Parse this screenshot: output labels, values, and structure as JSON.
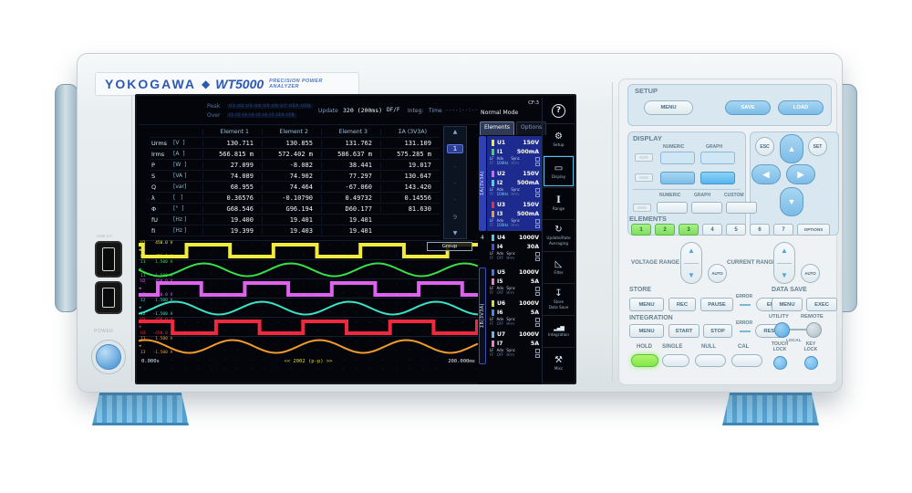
{
  "brand": {
    "logo": "YOKOGAWA",
    "diamond": "◆",
    "model": "WT5000",
    "subtitle": "PRECISION POWER ANALYZER"
  },
  "left_panel": {
    "usb_label": "USB 2.0",
    "power_label": "POWER"
  },
  "screen": {
    "status": {
      "peak_label": "Peak",
      "over_label": "Over",
      "peak_values": "U1 U2 U3 U4 U5 U6 U7 UΣA UΣB",
      "over_values": "I1 I2 I3 I4 I5 I6 I7 IΣA IΣB",
      "update_label": "Update",
      "update_value": "320 (200ms)",
      "update_suffix": "DF/F",
      "integ_label": "Integ:",
      "time_label": "Time",
      "time_value": "----:--:--"
    },
    "mode": "Normal Mode",
    "cf_badge": "CF:3",
    "tabs": [
      {
        "label": "Elements"
      },
      {
        "label": "Options"
      }
    ],
    "table": {
      "headers": [
        "Element 1",
        "Element 2",
        "Element 3",
        "ΣA (3V3A)"
      ],
      "rows": [
        {
          "name": "Urms",
          "unit": "[V  ]",
          "values": [
            "130.711",
            "130.855",
            "131.762",
            "131.109"
          ]
        },
        {
          "name": "Irms",
          "unit": "[A  ]",
          "values": [
            "566.815 m",
            "572.402 m",
            "586.637 m",
            "575.285 m"
          ]
        },
        {
          "name": "P",
          "unit": "[W  ]",
          "values": [
            "27.099",
            "-8.082",
            "38.441",
            "19.017"
          ]
        },
        {
          "name": "S",
          "unit": "[VA ]",
          "values": [
            "74.089",
            "74.902",
            "77.297",
            "130.647"
          ]
        },
        {
          "name": "Q",
          "unit": "[var]",
          "values": [
            "68.955",
            "74.464",
            "-67.060",
            "143.420"
          ]
        },
        {
          "name": "λ",
          "unit": "[   ]",
          "values": [
            "0.36576",
            "-0.10790",
            "0.49732",
            "0.14556"
          ]
        },
        {
          "name": "Φ",
          "unit": "[°  ]",
          "values": [
            "G68.546",
            "G96.194",
            "D60.177",
            "81.630"
          ]
        },
        {
          "name": "fU",
          "unit": "[Hz ]",
          "values": [
            "19.400",
            "19.401",
            "19.401",
            ""
          ]
        },
        {
          "name": "fI",
          "unit": "[Hz ]",
          "values": [
            "19.399",
            "19.403",
            "19.401",
            ""
          ]
        }
      ]
    },
    "pager": {
      "up": "▲",
      "pages": [
        "1",
        "·",
        "·",
        "·",
        "9"
      ],
      "current": "1",
      "down": "▼"
    },
    "waveforms": {
      "group_label": "Group",
      "time_start": "0.000s",
      "time_center": "<< 2002 (p-p) >>",
      "time_end": "200.000ms",
      "traces": [
        {
          "id": "U1",
          "type": "square",
          "color": "#f2ea3c",
          "label_top": "U1    450.0 V",
          "label_bottom": "U1   -450.0 V",
          "phase": 0.45
        },
        {
          "id": "I1",
          "type": "sine",
          "color": "#38df4b",
          "label_top": "I1    1.500 A",
          "label_bottom": "I1   -1.500 A",
          "phase": 0.5
        },
        {
          "id": "U2",
          "type": "square",
          "color": "#de62ee",
          "label_top": "U2    450.0 V",
          "label_bottom": "U2   -450.0 V",
          "phase": 0.78
        },
        {
          "id": "I2",
          "type": "sine",
          "color": "#3be2c4",
          "label_top": "I2    1.500 A",
          "label_bottom": "I2   -1.500 A",
          "phase": 0.83
        },
        {
          "id": "U3",
          "type": "square",
          "color": "#f2293e",
          "label_top": "U3    450.0 V",
          "label_bottom": "U3   -450.0 V",
          "phase": 0.11
        },
        {
          "id": "I3",
          "type": "sine",
          "color": "#f29b2c",
          "label_top": "I3    1.500 A",
          "label_bottom": "I3   -1.500 A",
          "phase": 0.17
        }
      ]
    },
    "elements_panel": {
      "group_a_label": "ΣA(3V3A)",
      "group_b_label": "ΣB(3V3A)",
      "element4_label": "4",
      "entries": [
        {
          "num": 1,
          "group": "A",
          "u": "U1",
          "u_range": "150V",
          "u_color": "#f2ea3c",
          "i": "I1",
          "i_range": "500mA",
          "i_color": "#38df4b",
          "lf": "LF",
          "ff": "FF",
          "adv": "Adv",
          "freq": "100Hz",
          "sync": "Sync",
          "hrm": "Hrm"
        },
        {
          "num": 2,
          "group": "A",
          "u": "U2",
          "u_range": "150V",
          "u_color": "#de62ee",
          "i": "I2",
          "i_range": "500mA",
          "i_color": "#3be2c4",
          "lf": "LF",
          "ff": "FF",
          "adv": "Adv",
          "freq": "100Hz",
          "sync": "Sync",
          "hrm": "Hrm"
        },
        {
          "num": 3,
          "group": "A",
          "u": "U3",
          "u_range": "150V",
          "u_color": "#f2293e",
          "i": "I3",
          "i_range": "500mA",
          "i_color": "#f29b2c",
          "lf": "LF",
          "ff": "FF",
          "adv": "Adv",
          "freq": "100Hz",
          "sync": "Sync",
          "hrm": "Hrm"
        },
        {
          "num": 4,
          "group": "solo",
          "u": "U4",
          "u_range": "1000V",
          "u_color": "#54c8f0",
          "i": "I4",
          "i_range": "30A",
          "i_color": "#3c55d8",
          "lf": "LF",
          "ff": "FF",
          "adv": "Adv",
          "freq": "OFF",
          "sync": "Sync",
          "hrm": "Hrm"
        },
        {
          "num": 5,
          "group": "B",
          "u": "U5",
          "u_range": "1000V",
          "u_color": "#3c78f0",
          "i": "I5",
          "i_range": "5A",
          "i_color": "#f07cc8",
          "lf": "LF",
          "ff": "FF",
          "adv": "Adv",
          "freq": "OFF",
          "sync": "Sync",
          "hrm": "Hrm"
        },
        {
          "num": 6,
          "group": "B",
          "u": "U6",
          "u_range": "1000V",
          "u_color": "#c8e62c",
          "i": "I6",
          "i_range": "5A",
          "i_color": "#3c8cf0",
          "lf": "LF",
          "ff": "FF",
          "adv": "Adv",
          "freq": "OFF",
          "sync": "Sync",
          "hrm": "Hrm"
        },
        {
          "num": 7,
          "group": "B",
          "u": "U7",
          "u_range": "1000V",
          "u_color": "#6cb6f0",
          "i": "I7",
          "i_range": "5A",
          "i_color": "#f07cc8",
          "lf": "LF",
          "ff": "FF",
          "adv": "Adv",
          "freq": "OFF",
          "sync": "Sync",
          "hrm": "Hrm"
        }
      ]
    },
    "softkeys": [
      {
        "name": "help",
        "icon": "?",
        "lines": []
      },
      {
        "name": "setup",
        "icon": "⚙",
        "lines": [
          "Setup"
        ]
      },
      {
        "name": "display",
        "icon": "▭",
        "lines": [
          "Display"
        ],
        "active": true
      },
      {
        "name": "range",
        "icon": "Ⅰ",
        "lines": [
          "Range"
        ],
        "serif": true
      },
      {
        "name": "update-rate",
        "icon": "↻",
        "lines": [
          "Update/Rate",
          "Averaging"
        ]
      },
      {
        "name": "filter",
        "icon": "◺",
        "lines": [
          "Filter"
        ]
      },
      {
        "name": "store-data-save",
        "icon": "↧",
        "lines": [
          "Store",
          "Data Save"
        ]
      },
      {
        "name": "integration",
        "icon": "▂▄▆",
        "lines": [
          "Integration"
        ],
        "bars": true
      },
      {
        "name": "misc",
        "icon": "⚒",
        "lines": [
          "Misc"
        ]
      }
    ]
  },
  "panel": {
    "setup": {
      "label": "SETUP",
      "menu": "MENU",
      "save": "SAVE",
      "load": "LOAD"
    },
    "display": {
      "label": "DISPLAY",
      "numeric": "NUMERIC",
      "graph": "GRAPH",
      "custom": "CUSTOM"
    },
    "nav": {
      "esc": "ESC",
      "set": "SET",
      "up": "▲",
      "down": "▼",
      "left": "◀",
      "right": "▶"
    },
    "elements": {
      "label": "ELEMENTS",
      "buttons": [
        {
          "label": "1",
          "active": true
        },
        {
          "label": "2",
          "active": true
        },
        {
          "label": "3",
          "active": true
        },
        {
          "label": "4"
        },
        {
          "label": "5"
        },
        {
          "label": "6"
        },
        {
          "label": "7"
        },
        {
          "label": "OPTIONS"
        }
      ]
    },
    "voltage_range": {
      "label": "VOLTAGE RANGE",
      "up": "▲",
      "down": "▼",
      "auto": "AUTO"
    },
    "current_range": {
      "label": "CURRENT RANGE",
      "up": "▲",
      "down": "▼",
      "auto": "AUTO"
    },
    "store": {
      "label": "STORE",
      "menu": "MENU",
      "rec": "REC",
      "pause": "PAUSE",
      "error": "ERROR",
      "end": "END"
    },
    "data_save": {
      "label": "DATA SAVE",
      "menu": "MENU",
      "exec": "EXEC"
    },
    "integration": {
      "label": "INTEGRATION",
      "menu": "MENU",
      "start": "START",
      "stop": "STOP",
      "error": "ERROR",
      "reset": "RESET"
    },
    "utility": {
      "utility": "UTILITY",
      "remote": "REMOTE",
      "local": "LOCAL"
    },
    "bottom": {
      "hold": "HOLD",
      "single": "SINGLE",
      "null": "NULL",
      "cal": "CAL",
      "touch_lock_line1": "TOUCH",
      "touch_lock_line2": "LOCK",
      "key_lock_line1": "KEY",
      "key_lock_line2": "LOCK"
    }
  }
}
